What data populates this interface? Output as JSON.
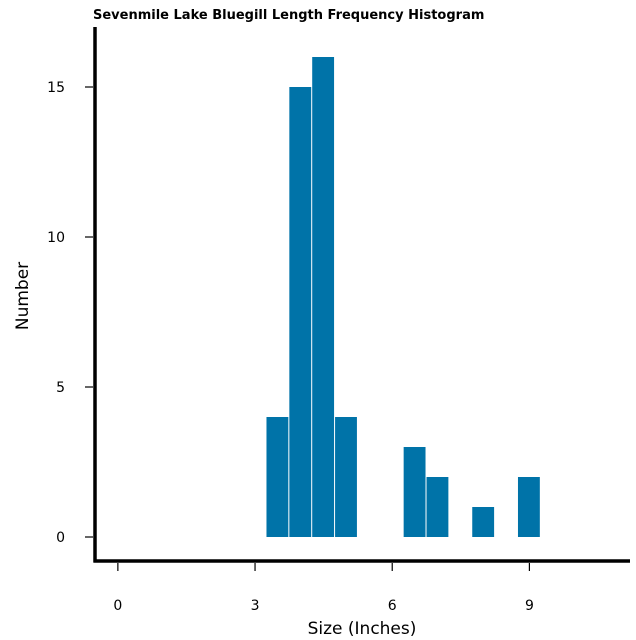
{
  "chart_data": {
    "type": "bar",
    "title": "Sevenmile Lake Bluegill Length Frequency Histogram",
    "xlabel": "Size (Inches)",
    "ylabel": "Number",
    "bin_width": 0.5,
    "bins": [
      {
        "start": 3.25,
        "end": 3.75,
        "value": 4
      },
      {
        "start": 3.75,
        "end": 4.25,
        "value": 15
      },
      {
        "start": 4.25,
        "end": 4.75,
        "value": 16
      },
      {
        "start": 4.75,
        "end": 5.25,
        "value": 4
      },
      {
        "start": 6.25,
        "end": 6.75,
        "value": 3
      },
      {
        "start": 6.75,
        "end": 7.25,
        "value": 2
      },
      {
        "start": 7.75,
        "end": 8.25,
        "value": 1
      },
      {
        "start": 8.75,
        "end": 9.25,
        "value": 2
      }
    ],
    "xlim": [
      -0.5,
      11.2
    ],
    "ylim": [
      -0.8,
      17
    ],
    "xticks": [
      0,
      3,
      6,
      9
    ],
    "yticks": [
      0,
      5,
      10,
      15
    ],
    "bar_color": "#0073a8",
    "grid": false,
    "legend": "none"
  }
}
